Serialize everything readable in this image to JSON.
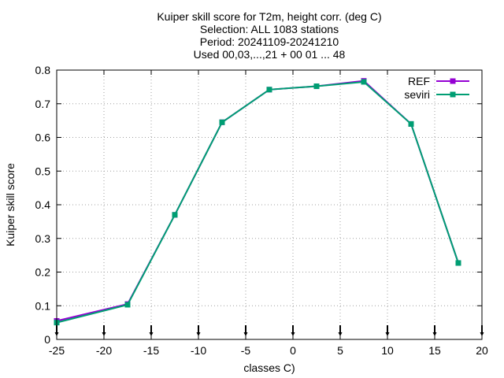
{
  "chart_data": {
    "type": "line",
    "title_lines": [
      "Kuiper skill score  for T2m, height corr. (deg C)",
      "Selection: ALL    1083 stations",
      "Period: 20241109-20241210",
      "Used 00,03,...,21 + 00 01 ... 48"
    ],
    "xlabel": "classes C)",
    "ylabel": "Kuiper skill score",
    "xlim": [
      -25,
      20
    ],
    "ylim": [
      0,
      0.8
    ],
    "xticks": [
      -25,
      -20,
      -15,
      -10,
      -5,
      0,
      5,
      10,
      15,
      20
    ],
    "yticks": [
      0,
      0.1,
      0.2,
      0.3,
      0.4,
      0.5,
      0.6,
      0.7,
      0.8
    ],
    "xtick_labels": [
      "-25",
      "-20",
      "-15",
      "-10",
      "-5",
      "0",
      "5",
      "10",
      "15",
      "20"
    ],
    "ytick_labels": [
      "0",
      "0.1",
      "0.2",
      "0.3",
      "0.4",
      "0.5",
      "0.6",
      "0.7",
      "0.8"
    ],
    "grid": true,
    "legend_position": "top-right",
    "class_markers_x": [
      -25,
      -20,
      -15,
      -10,
      -5,
      0,
      5,
      10,
      15,
      20
    ],
    "series": [
      {
        "name": "REF",
        "color": "#9400d3",
        "x": [
          -25,
          -17.5,
          -12.5,
          -7.5,
          -2.5,
          2.5,
          7.5,
          12.5,
          17.5
        ],
        "y": [
          0.055,
          0.105,
          0.37,
          0.645,
          0.742,
          0.752,
          0.768,
          0.64,
          0.227
        ]
      },
      {
        "name": "seviri",
        "color": "#009e73",
        "x": [
          -25,
          -17.5,
          -12.5,
          -7.5,
          -2.5,
          2.5,
          7.5,
          12.5,
          17.5
        ],
        "y": [
          0.05,
          0.103,
          0.37,
          0.645,
          0.742,
          0.752,
          0.765,
          0.64,
          0.227
        ]
      }
    ]
  }
}
